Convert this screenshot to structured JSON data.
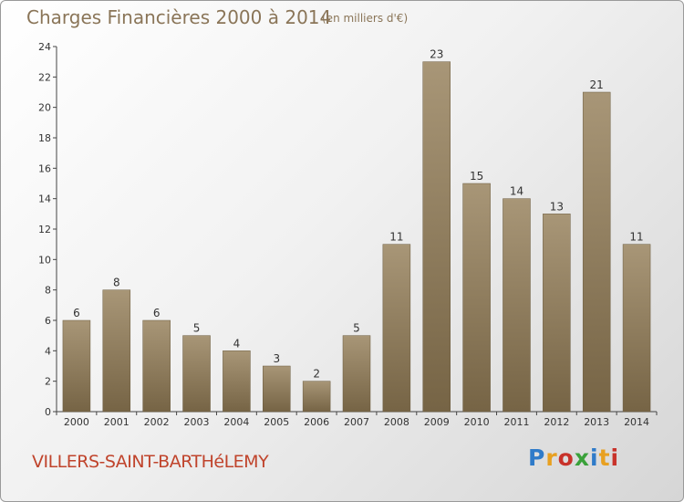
{
  "header": {
    "title": "Charges Financières 2000 à 2014",
    "subtitle": "(en milliers d'€)"
  },
  "footer": {
    "commune": "VILLERS-SAINT-BARTHéLEMY",
    "brand_letters": [
      "P",
      "r",
      "o",
      "x",
      "i",
      "t",
      "i"
    ],
    "brand_colors": [
      "#2f7bc9",
      "#e8a020",
      "#c8322a",
      "#3aa13a",
      "#2f7bc9",
      "#e8a020",
      "#c8322a"
    ]
  },
  "colors": {
    "bar_top": "#a89677",
    "bar_bottom": "#766445",
    "text": "#333333",
    "accent": "#8a7558"
  },
  "chart_data": {
    "type": "bar",
    "categories": [
      "2000",
      "2001",
      "2002",
      "2003",
      "2004",
      "2005",
      "2006",
      "2007",
      "2008",
      "2009",
      "2010",
      "2011",
      "2012",
      "2013",
      "2014"
    ],
    "values": [
      6,
      8,
      6,
      5,
      4,
      3,
      2,
      5,
      11,
      23,
      15,
      14,
      13,
      21,
      11
    ],
    "yticks": [
      0,
      2,
      4,
      6,
      8,
      10,
      12,
      14,
      16,
      18,
      20,
      22,
      24
    ],
    "ylim": [
      0,
      24
    ],
    "grid": false
  }
}
